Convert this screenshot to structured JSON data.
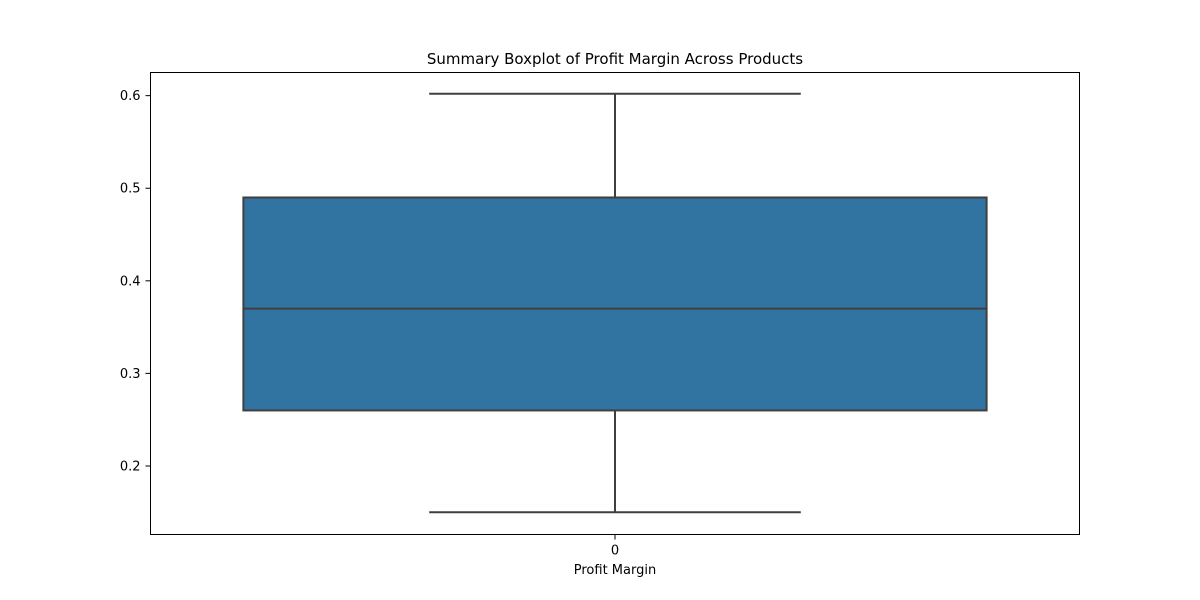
{
  "chart_data": {
    "type": "boxplot",
    "title": "Summary Boxplot of Profit Margin Across Products",
    "xlabel": "Profit Margin",
    "ylabel": "",
    "categories": [
      "0"
    ],
    "boxes": [
      {
        "category": "0",
        "whisker_low": 0.15,
        "q1": 0.26,
        "median": 0.37,
        "q3": 0.49,
        "whisker_high": 0.602
      }
    ],
    "ylim": [
      0.126,
      0.625
    ],
    "yticks": [
      0.2,
      0.3,
      0.4,
      0.5,
      0.6
    ],
    "ytick_labels": [
      "0.2",
      "0.3",
      "0.4",
      "0.5",
      "0.6"
    ],
    "grid": false,
    "colors": {
      "box_fill": "#3274a1",
      "line": "#3f3f3f",
      "axes": "#000000"
    }
  }
}
